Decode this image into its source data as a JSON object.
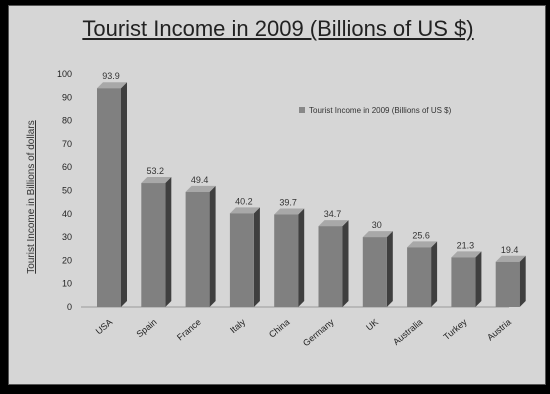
{
  "chart_data": {
    "type": "bar",
    "title": "Tourist Income in 2009 (Billions of US $)",
    "ylabel": "Tourist Income in Billions of dollars",
    "xlabel": "",
    "categories": [
      "USA",
      "Spain",
      "France",
      "Italy",
      "China",
      "Germany",
      "UK",
      "Australia",
      "Turkey",
      "Austria"
    ],
    "values": [
      93.9,
      53.2,
      49.4,
      40.2,
      39.7,
      34.7,
      30,
      25.6,
      21.3,
      19.4
    ],
    "value_labels": [
      "93.9",
      "53.2",
      "49.4",
      "40.2",
      "39.7",
      "34.7",
      "30",
      "25.6",
      "21.3",
      "19.4"
    ],
    "series": [
      {
        "name": "Tourist Income in 2009 (Billions of US $)"
      }
    ],
    "yticks": [
      "0",
      "10",
      "20",
      "30",
      "40",
      "50",
      "60",
      "70",
      "80",
      "90",
      "100"
    ],
    "ylim": [
      0,
      100
    ],
    "legend_position": "top-right",
    "grid": false,
    "bar_color": "#808080"
  }
}
